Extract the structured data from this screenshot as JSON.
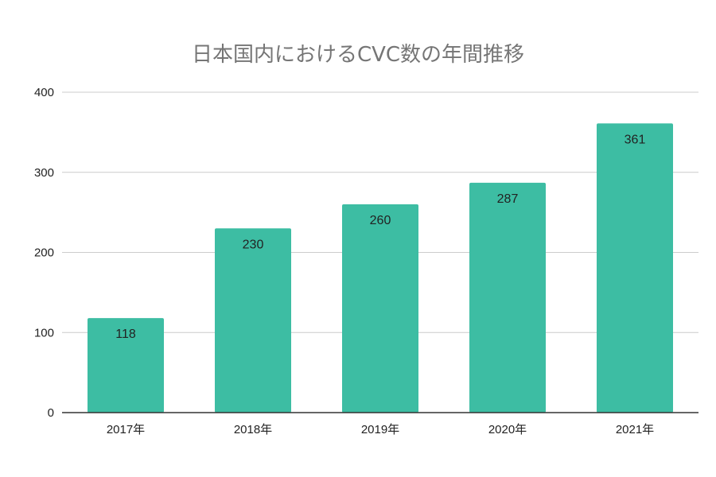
{
  "chart_data": {
    "type": "bar",
    "title": "日本国内におけるCVC数の年間推移",
    "xlabel": "",
    "ylabel": "",
    "categories": [
      "2017年",
      "2018年",
      "2019年",
      "2020年",
      "2021年"
    ],
    "values": [
      118,
      230,
      260,
      287,
      361
    ],
    "ylim": [
      0,
      400
    ],
    "yticks": [
      0,
      100,
      200,
      300,
      400
    ],
    "grid": true,
    "legend": "none",
    "data_labels": true,
    "colors": {
      "bar": "#3dbda3"
    }
  }
}
